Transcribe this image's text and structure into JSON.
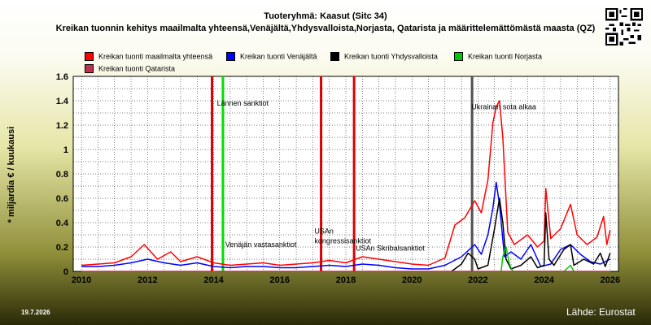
{
  "title": "Tuoteryhmä: Kaasut (Sitc 34)",
  "subtitle": "Kreikan tuonnin kehitys maailmalta yhteensä,Venäjältä,Yhdysvalloista,Norjasta, Qatarista ja määrittelemättömästä maasta (QZ)",
  "date_label": "19.7.2026",
  "source_label": "Lähde: Eurostat",
  "chart_data": {
    "type": "line",
    "title": "Tuoteryhmä: Kaasut (Sitc 34)",
    "ylabel": "* miljardia € / kuukausi",
    "xlabel": "",
    "xlim": [
      2009.75,
      2026.25
    ],
    "ylim": [
      0,
      1.6
    ],
    "x_ticks": [
      "2010",
      "2012",
      "2014",
      "2016",
      "2018",
      "2020",
      "2022",
      "2024",
      "2026"
    ],
    "y_ticks": [
      "0",
      "0.2",
      "0.4",
      "0.6",
      "0.8",
      "1",
      "1.2",
      "1.4",
      "1.6"
    ],
    "grid": true,
    "legend_position": "top",
    "series": [
      {
        "name": "Kreikan tuonti maailmalta yhteensä",
        "color": "#ff0000",
        "points": [
          [
            2010.0,
            0.05
          ],
          [
            2010.5,
            0.06
          ],
          [
            2011.0,
            0.07
          ],
          [
            2011.5,
            0.12
          ],
          [
            2011.9,
            0.22
          ],
          [
            2012.3,
            0.1
          ],
          [
            2012.7,
            0.16
          ],
          [
            2013.0,
            0.08
          ],
          [
            2013.5,
            0.12
          ],
          [
            2014.0,
            0.07
          ],
          [
            2014.5,
            0.05
          ],
          [
            2015.0,
            0.06
          ],
          [
            2015.5,
            0.07
          ],
          [
            2016.0,
            0.05
          ],
          [
            2016.5,
            0.06
          ],
          [
            2017.0,
            0.07
          ],
          [
            2017.5,
            0.09
          ],
          [
            2018.0,
            0.07
          ],
          [
            2018.5,
            0.12
          ],
          [
            2019.0,
            0.1
          ],
          [
            2019.5,
            0.08
          ],
          [
            2020.0,
            0.06
          ],
          [
            2020.5,
            0.05
          ],
          [
            2021.0,
            0.11
          ],
          [
            2021.3,
            0.38
          ],
          [
            2021.6,
            0.44
          ],
          [
            2021.9,
            0.58
          ],
          [
            2022.1,
            0.48
          ],
          [
            2022.3,
            0.75
          ],
          [
            2022.45,
            1.22
          ],
          [
            2022.55,
            1.35
          ],
          [
            2022.65,
            1.4
          ],
          [
            2022.75,
            1.1
          ],
          [
            2022.9,
            0.32
          ],
          [
            2023.1,
            0.22
          ],
          [
            2023.5,
            0.3
          ],
          [
            2023.8,
            0.2
          ],
          [
            2024.0,
            0.25
          ],
          [
            2024.05,
            0.68
          ],
          [
            2024.2,
            0.27
          ],
          [
            2024.5,
            0.35
          ],
          [
            2024.8,
            0.55
          ],
          [
            2025.0,
            0.3
          ],
          [
            2025.3,
            0.22
          ],
          [
            2025.6,
            0.28
          ],
          [
            2025.8,
            0.45
          ],
          [
            2025.9,
            0.22
          ],
          [
            2026.0,
            0.34
          ]
        ]
      },
      {
        "name": "Kreikan tuonti Venäjältä",
        "color": "#0000ff",
        "points": [
          [
            2010.0,
            0.04
          ],
          [
            2010.5,
            0.04
          ],
          [
            2011.0,
            0.05
          ],
          [
            2011.5,
            0.07
          ],
          [
            2012.0,
            0.1
          ],
          [
            2012.5,
            0.07
          ],
          [
            2013.0,
            0.05
          ],
          [
            2013.5,
            0.07
          ],
          [
            2014.0,
            0.04
          ],
          [
            2014.5,
            0.03
          ],
          [
            2015.0,
            0.04
          ],
          [
            2015.5,
            0.04
          ],
          [
            2016.0,
            0.03
          ],
          [
            2016.5,
            0.03
          ],
          [
            2017.0,
            0.04
          ],
          [
            2017.5,
            0.05
          ],
          [
            2018.0,
            0.04
          ],
          [
            2018.5,
            0.06
          ],
          [
            2019.0,
            0.05
          ],
          [
            2019.5,
            0.03
          ],
          [
            2020.0,
            0.02
          ],
          [
            2020.5,
            0.02
          ],
          [
            2021.0,
            0.05
          ],
          [
            2021.5,
            0.12
          ],
          [
            2021.9,
            0.22
          ],
          [
            2022.1,
            0.14
          ],
          [
            2022.3,
            0.3
          ],
          [
            2022.45,
            0.52
          ],
          [
            2022.55,
            0.73
          ],
          [
            2022.65,
            0.55
          ],
          [
            2022.8,
            0.12
          ],
          [
            2023.0,
            0.16
          ],
          [
            2023.3,
            0.1
          ],
          [
            2023.6,
            0.22
          ],
          [
            2023.9,
            0.04
          ],
          [
            2024.2,
            0.06
          ],
          [
            2024.5,
            0.18
          ],
          [
            2024.8,
            0.22
          ],
          [
            2025.1,
            0.14
          ],
          [
            2025.4,
            0.08
          ],
          [
            2025.7,
            0.06
          ],
          [
            2026.0,
            0.1
          ]
        ]
      },
      {
        "name": "Kreikan tuonti Yhdysvalloista",
        "color": "#000000",
        "points": [
          [
            2021.2,
            0.0
          ],
          [
            2021.5,
            0.06
          ],
          [
            2021.7,
            0.15
          ],
          [
            2021.9,
            0.1
          ],
          [
            2022.0,
            0.02
          ],
          [
            2022.3,
            0.05
          ],
          [
            2022.5,
            0.35
          ],
          [
            2022.65,
            0.6
          ],
          [
            2022.75,
            0.4
          ],
          [
            2022.85,
            0.1
          ],
          [
            2023.0,
            0.02
          ],
          [
            2023.3,
            0.05
          ],
          [
            2023.6,
            0.12
          ],
          [
            2023.8,
            0.03
          ],
          [
            2024.0,
            0.05
          ],
          [
            2024.05,
            0.48
          ],
          [
            2024.15,
            0.1
          ],
          [
            2024.3,
            0.05
          ],
          [
            2024.6,
            0.18
          ],
          [
            2024.8,
            0.22
          ],
          [
            2024.9,
            0.05
          ],
          [
            2025.2,
            0.1
          ],
          [
            2025.5,
            0.06
          ],
          [
            2025.7,
            0.15
          ],
          [
            2025.85,
            0.04
          ],
          [
            2026.0,
            0.15
          ]
        ]
      },
      {
        "name": "Kreikan tuonti Norjasta",
        "color": "#00c800",
        "points": [
          [
            2022.7,
            0.0
          ],
          [
            2022.75,
            0.12
          ],
          [
            2022.85,
            0.2
          ],
          [
            2022.95,
            0.06
          ],
          [
            2023.05,
            0.0
          ],
          [
            2024.6,
            0.0
          ],
          [
            2024.8,
            0.05
          ],
          [
            2024.9,
            0.0
          ]
        ]
      },
      {
        "name": "Kreikan tuonti Qatarista",
        "color": "#c03050",
        "points": [
          [
            2010.0,
            0.0
          ],
          [
            2026.0,
            0.0
          ]
        ]
      }
    ],
    "annotations": [
      {
        "text": "Lännen sanktiot",
        "x": 2014.1,
        "y": 1.36,
        "line_color": "#00dd00",
        "line_x": 2014.28
      },
      {
        "text": "Ukrainan sota alkaa",
        "x": 2021.8,
        "y": 1.33,
        "line_color": "#505050",
        "line_x": 2021.82
      },
      {
        "text": "Venäjän vastasanktiot",
        "x": 2014.35,
        "y": 0.2,
        "line_color": "#dd0000",
        "line_x": 2013.95
      },
      {
        "text": "USAn",
        "x": 2017.05,
        "y": 0.31,
        "line_color": "#dd0000",
        "line_x": 2017.25
      },
      {
        "text": "kongressisanktiot",
        "x": 2017.05,
        "y": 0.23,
        "line_color": "#dd0000",
        "line_x": 2018.25
      },
      {
        "text": "USAn Skribalsanktiot",
        "x": 2018.3,
        "y": 0.17,
        "line_color": null,
        "line_x": null
      }
    ]
  }
}
